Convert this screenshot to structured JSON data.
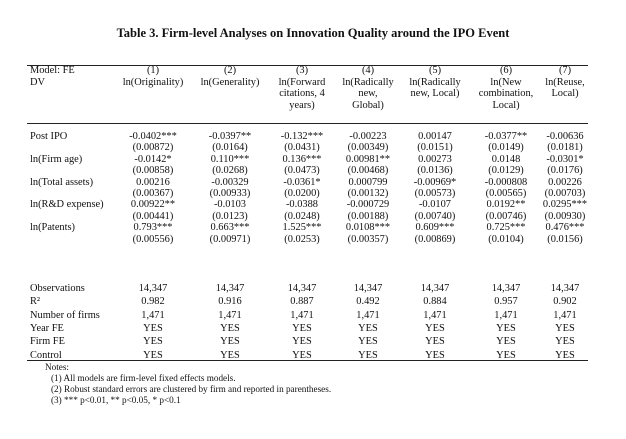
{
  "table": {
    "title": "Table 3. Firm-level Analyses on Innovation Quality around the IPO Event",
    "corner": [
      "Model: FE",
      "DV"
    ],
    "columns": [
      {
        "num": "(1)",
        "dv": [
          "ln(Originality)"
        ]
      },
      {
        "num": "(2)",
        "dv": [
          "ln(Generality)"
        ]
      },
      {
        "num": "(3)",
        "dv": [
          "ln(Forward",
          "citations, 4",
          "years)"
        ]
      },
      {
        "num": "(4)",
        "dv": [
          "ln(Radically",
          "new,",
          "Global)"
        ]
      },
      {
        "num": "(5)",
        "dv": [
          "ln(Radically",
          "new, Local)"
        ]
      },
      {
        "num": "(6)",
        "dv": [
          "ln(New",
          "combination,",
          "Local)"
        ]
      },
      {
        "num": "(7)",
        "dv": [
          "ln(Reuse,",
          "Local)"
        ]
      }
    ],
    "coef_rows": [
      {
        "label": "Post IPO",
        "coef": [
          "-0.0402***",
          "-0.0397**",
          "-0.132***",
          "-0.00223",
          "0.00147",
          "-0.0377**",
          "-0.00636"
        ],
        "se": [
          "(0.00872)",
          "(0.0164)",
          "(0.0431)",
          "(0.00349)",
          "(0.0151)",
          "(0.0149)",
          "(0.0181)"
        ]
      },
      {
        "label": "ln(Firm age)",
        "coef": [
          "-0.0142*",
          "0.110***",
          "0.136***",
          "0.00981**",
          "0.00273",
          "0.0148",
          "-0.0301*"
        ],
        "se": [
          "(0.00858)",
          "(0.0268)",
          "(0.0473)",
          "(0.00468)",
          "(0.0136)",
          "(0.0129)",
          "(0.0176)"
        ]
      },
      {
        "label": "ln(Total assets)",
        "coef": [
          "0.00216",
          "-0.00329",
          "-0.0361*",
          "0.000799",
          "-0.00969*",
          "-0.000808",
          "0.00226"
        ],
        "se": [
          "(0.00367)",
          "(0.00933)",
          "(0.0200)",
          "(0.00132)",
          "(0.00573)",
          "(0.00565)",
          "(0.00703)"
        ]
      },
      {
        "label": "ln(R&D expense)",
        "coef": [
          "0.00922**",
          "-0.0103",
          "-0.0388",
          "-0.000729",
          "-0.0107",
          "0.0192**",
          "0.0295***"
        ],
        "se": [
          "(0.00441)",
          "(0.0123)",
          "(0.0248)",
          "(0.00188)",
          "(0.00740)",
          "(0.00746)",
          "(0.00930)"
        ]
      },
      {
        "label": "ln(Patents)",
        "coef": [
          "0.793***",
          "0.663***",
          "1.525***",
          "0.0108***",
          "0.609***",
          "0.725***",
          "0.476***"
        ],
        "se": [
          "(0.00556)",
          "(0.00971)",
          "(0.0253)",
          "(0.00357)",
          "(0.00869)",
          "(0.0104)",
          "(0.0156)"
        ]
      }
    ],
    "stat_rows": [
      {
        "label": "Observations",
        "values": [
          "14,347",
          "14,347",
          "14,347",
          "14,347",
          "14,347",
          "14,347",
          "14,347"
        ]
      },
      {
        "label": "R²",
        "values": [
          "0.982",
          "0.916",
          "0.887",
          "0.492",
          "0.884",
          "0.957",
          "0.902"
        ]
      },
      {
        "label": "Number of firms",
        "values": [
          "1,471",
          "1,471",
          "1,471",
          "1,471",
          "1,471",
          "1,471",
          "1,471"
        ]
      },
      {
        "label": "Year FE",
        "values": [
          "YES",
          "YES",
          "YES",
          "YES",
          "YES",
          "YES",
          "YES"
        ]
      },
      {
        "label": "Firm FE",
        "values": [
          "YES",
          "YES",
          "YES",
          "YES",
          "YES",
          "YES",
          "YES"
        ]
      },
      {
        "label": "Control",
        "values": [
          "YES",
          "YES",
          "YES",
          "YES",
          "YES",
          "YES",
          "YES"
        ]
      }
    ],
    "notes": [
      "Notes:",
      "(1) All models are firm-level fixed effects models.",
      "(2) Robust standard errors are clustered by firm and reported in parentheses.",
      "(3) *** p<0.01, ** p<0.05, * p<0.1"
    ]
  }
}
